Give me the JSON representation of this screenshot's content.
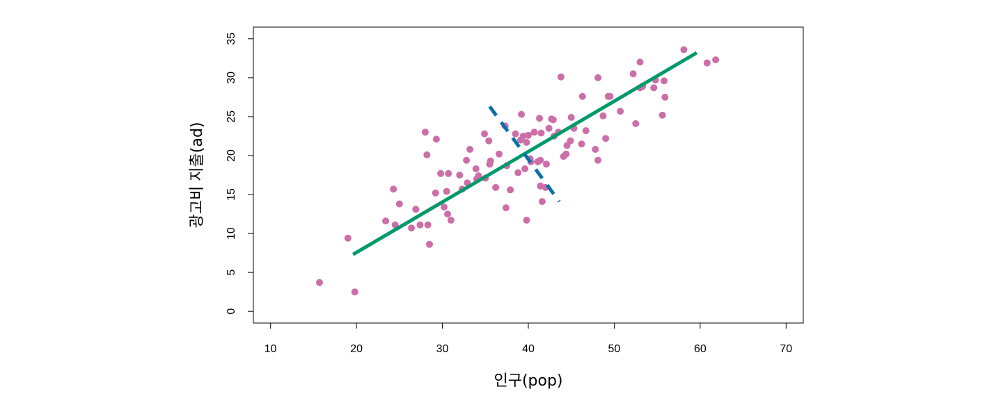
{
  "chart_data": {
    "type": "scatter",
    "title": "",
    "xlabel": "인구(pop)",
    "ylabel": "광고비 지출(ad)",
    "xlim": [
      8,
      72
    ],
    "ylim": [
      -1.5,
      36.5
    ],
    "xticks": [
      10,
      20,
      30,
      40,
      50,
      60,
      70
    ],
    "yticks": [
      0,
      5,
      10,
      15,
      20,
      25,
      30,
      35
    ],
    "grid": false,
    "legend": "none",
    "colors": {
      "points": "#cc6ea8",
      "fit_line": "#009a6a",
      "dashed_line": "#0a6fa8"
    },
    "points": [
      {
        "x": 15.7,
        "y": 3.7
      },
      {
        "x": 19.8,
        "y": 2.5
      },
      {
        "x": 19.0,
        "y": 9.4
      },
      {
        "x": 23.4,
        "y": 11.6
      },
      {
        "x": 24.3,
        "y": 15.7
      },
      {
        "x": 24.5,
        "y": 11.1
      },
      {
        "x": 25.0,
        "y": 13.8
      },
      {
        "x": 26.4,
        "y": 10.7
      },
      {
        "x": 26.9,
        "y": 13.1
      },
      {
        "x": 27.4,
        "y": 11.1
      },
      {
        "x": 28.0,
        "y": 23.0
      },
      {
        "x": 28.2,
        "y": 20.1
      },
      {
        "x": 28.3,
        "y": 11.1
      },
      {
        "x": 28.5,
        "y": 8.6
      },
      {
        "x": 29.2,
        "y": 15.2
      },
      {
        "x": 29.3,
        "y": 22.1
      },
      {
        "x": 29.8,
        "y": 17.7
      },
      {
        "x": 30.2,
        "y": 13.4
      },
      {
        "x": 30.5,
        "y": 15.4
      },
      {
        "x": 30.6,
        "y": 12.5
      },
      {
        "x": 30.7,
        "y": 17.7
      },
      {
        "x": 31.0,
        "y": 11.7
      },
      {
        "x": 32.0,
        "y": 17.5
      },
      {
        "x": 32.3,
        "y": 15.7
      },
      {
        "x": 32.8,
        "y": 19.4
      },
      {
        "x": 32.9,
        "y": 16.5
      },
      {
        "x": 33.2,
        "y": 20.8
      },
      {
        "x": 33.9,
        "y": 18.3
      },
      {
        "x": 34.0,
        "y": 17.0
      },
      {
        "x": 34.2,
        "y": 17.4
      },
      {
        "x": 34.9,
        "y": 22.8
      },
      {
        "x": 35.0,
        "y": 17.1
      },
      {
        "x": 35.4,
        "y": 21.9
      },
      {
        "x": 35.5,
        "y": 18.9
      },
      {
        "x": 35.6,
        "y": 19.3
      },
      {
        "x": 36.2,
        "y": 15.9
      },
      {
        "x": 36.6,
        "y": 20.2
      },
      {
        "x": 37.4,
        "y": 13.3
      },
      {
        "x": 37.5,
        "y": 18.7
      },
      {
        "x": 37.3,
        "y": 23.8
      },
      {
        "x": 37.9,
        "y": 15.6
      },
      {
        "x": 38.5,
        "y": 22.8
      },
      {
        "x": 38.8,
        "y": 17.8
      },
      {
        "x": 39.1,
        "y": 22.0
      },
      {
        "x": 39.2,
        "y": 25.3
      },
      {
        "x": 39.4,
        "y": 22.5
      },
      {
        "x": 39.6,
        "y": 18.3
      },
      {
        "x": 39.8,
        "y": 21.7
      },
      {
        "x": 39.8,
        "y": 11.7
      },
      {
        "x": 40.0,
        "y": 22.6
      },
      {
        "x": 40.2,
        "y": 19.6
      },
      {
        "x": 40.3,
        "y": 19.2
      },
      {
        "x": 40.7,
        "y": 23.0
      },
      {
        "x": 41.1,
        "y": 19.2
      },
      {
        "x": 41.3,
        "y": 24.8
      },
      {
        "x": 41.4,
        "y": 16.1
      },
      {
        "x": 41.4,
        "y": 19.4
      },
      {
        "x": 41.5,
        "y": 22.9
      },
      {
        "x": 41.6,
        "y": 14.1
      },
      {
        "x": 42.0,
        "y": 15.9
      },
      {
        "x": 42.1,
        "y": 18.9
      },
      {
        "x": 42.4,
        "y": 23.5
      },
      {
        "x": 42.7,
        "y": 24.7
      },
      {
        "x": 42.9,
        "y": 24.6
      },
      {
        "x": 43.0,
        "y": 22.5
      },
      {
        "x": 43.5,
        "y": 23.0
      },
      {
        "x": 43.8,
        "y": 30.1
      },
      {
        "x": 44.1,
        "y": 19.9
      },
      {
        "x": 44.4,
        "y": 20.2
      },
      {
        "x": 44.5,
        "y": 21.3
      },
      {
        "x": 44.9,
        "y": 21.9
      },
      {
        "x": 45.0,
        "y": 24.9
      },
      {
        "x": 45.3,
        "y": 23.5
      },
      {
        "x": 46.2,
        "y": 21.5
      },
      {
        "x": 46.3,
        "y": 27.6
      },
      {
        "x": 46.7,
        "y": 23.2
      },
      {
        "x": 47.8,
        "y": 20.8
      },
      {
        "x": 48.1,
        "y": 30.0
      },
      {
        "x": 48.1,
        "y": 19.4
      },
      {
        "x": 48.7,
        "y": 25.1
      },
      {
        "x": 49.0,
        "y": 22.2
      },
      {
        "x": 49.3,
        "y": 27.6
      },
      {
        "x": 49.5,
        "y": 27.6
      },
      {
        "x": 50.7,
        "y": 25.7
      },
      {
        "x": 52.2,
        "y": 30.5
      },
      {
        "x": 52.5,
        "y": 24.1
      },
      {
        "x": 53.0,
        "y": 32.0
      },
      {
        "x": 53.0,
        "y": 28.7
      },
      {
        "x": 53.3,
        "y": 28.9
      },
      {
        "x": 54.6,
        "y": 28.7
      },
      {
        "x": 54.8,
        "y": 29.7
      },
      {
        "x": 55.6,
        "y": 25.2
      },
      {
        "x": 55.8,
        "y": 29.6
      },
      {
        "x": 55.9,
        "y": 27.5
      },
      {
        "x": 58.1,
        "y": 33.6
      },
      {
        "x": 60.8,
        "y": 31.9
      },
      {
        "x": 61.8,
        "y": 32.3
      }
    ],
    "lines": [
      {
        "style": "solid",
        "x": [
          19.6,
          59.6
        ],
        "y": [
          7.3,
          33.2
        ]
      },
      {
        "style": "dashed",
        "x": [
          35.5,
          43.6
        ],
        "y": [
          26.3,
          14.1
        ]
      }
    ]
  }
}
